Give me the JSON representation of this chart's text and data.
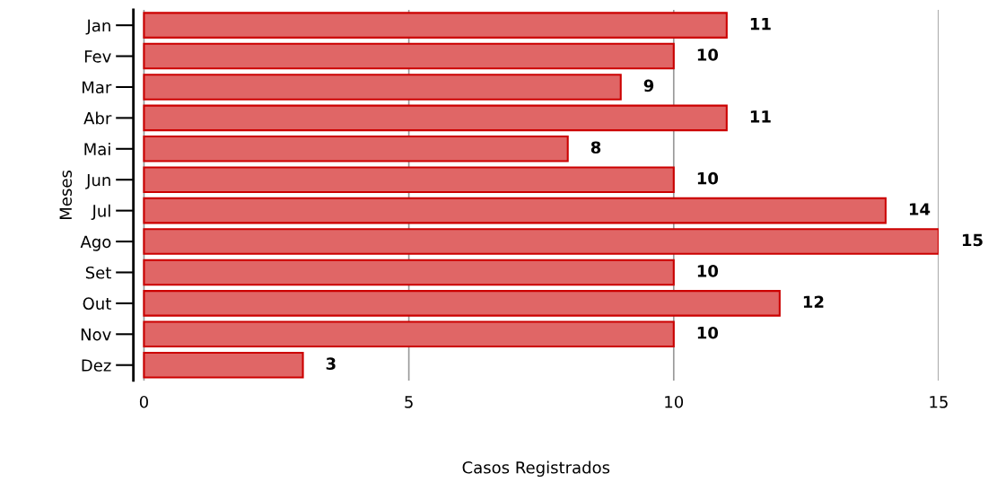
{
  "chart_data": {
    "type": "bar",
    "orientation": "horizontal",
    "xlabel": "Casos Registrados",
    "ylabel": "Meses",
    "categories": [
      "Jan",
      "Fev",
      "Mar",
      "Abr",
      "Mai",
      "Jun",
      "Jul",
      "Ago",
      "Set",
      "Out",
      "Nov",
      "Dez"
    ],
    "values": [
      11,
      10,
      9,
      11,
      8,
      10,
      14,
      15,
      10,
      12,
      10,
      3
    ],
    "color": "#e06666",
    "xlim": [
      -0.2,
      15
    ],
    "xticks": [
      0,
      5,
      10,
      15
    ],
    "grid": "x",
    "data_labels": true
  }
}
